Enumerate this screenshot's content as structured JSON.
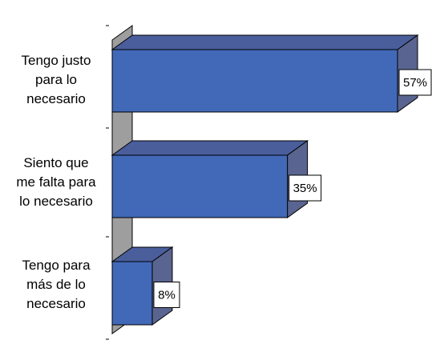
{
  "chart_data": {
    "type": "bar",
    "orientation": "horizontal",
    "three_d": true,
    "categories": [
      [
        "Tengo justo",
        "para lo",
        "necesario"
      ],
      [
        "Siento que",
        "me falta para",
        "lo necesario"
      ],
      [
        "Tengo para",
        "más de lo",
        "necesario"
      ]
    ],
    "values": [
      57,
      35,
      8
    ],
    "data_labels": [
      "57%",
      "35%",
      "8%"
    ],
    "title": "",
    "xlabel": "",
    "ylabel": "",
    "xlim": [
      0,
      57
    ],
    "grid": false,
    "legend": "none",
    "colors": {
      "bar_front": "#4169b8",
      "bar_top": "#4a5e9c",
      "bar_side": "#5a6490",
      "wall_front": "#9e9e9e",
      "wall_side": "#c4c4c4",
      "outline": "#000000"
    }
  }
}
